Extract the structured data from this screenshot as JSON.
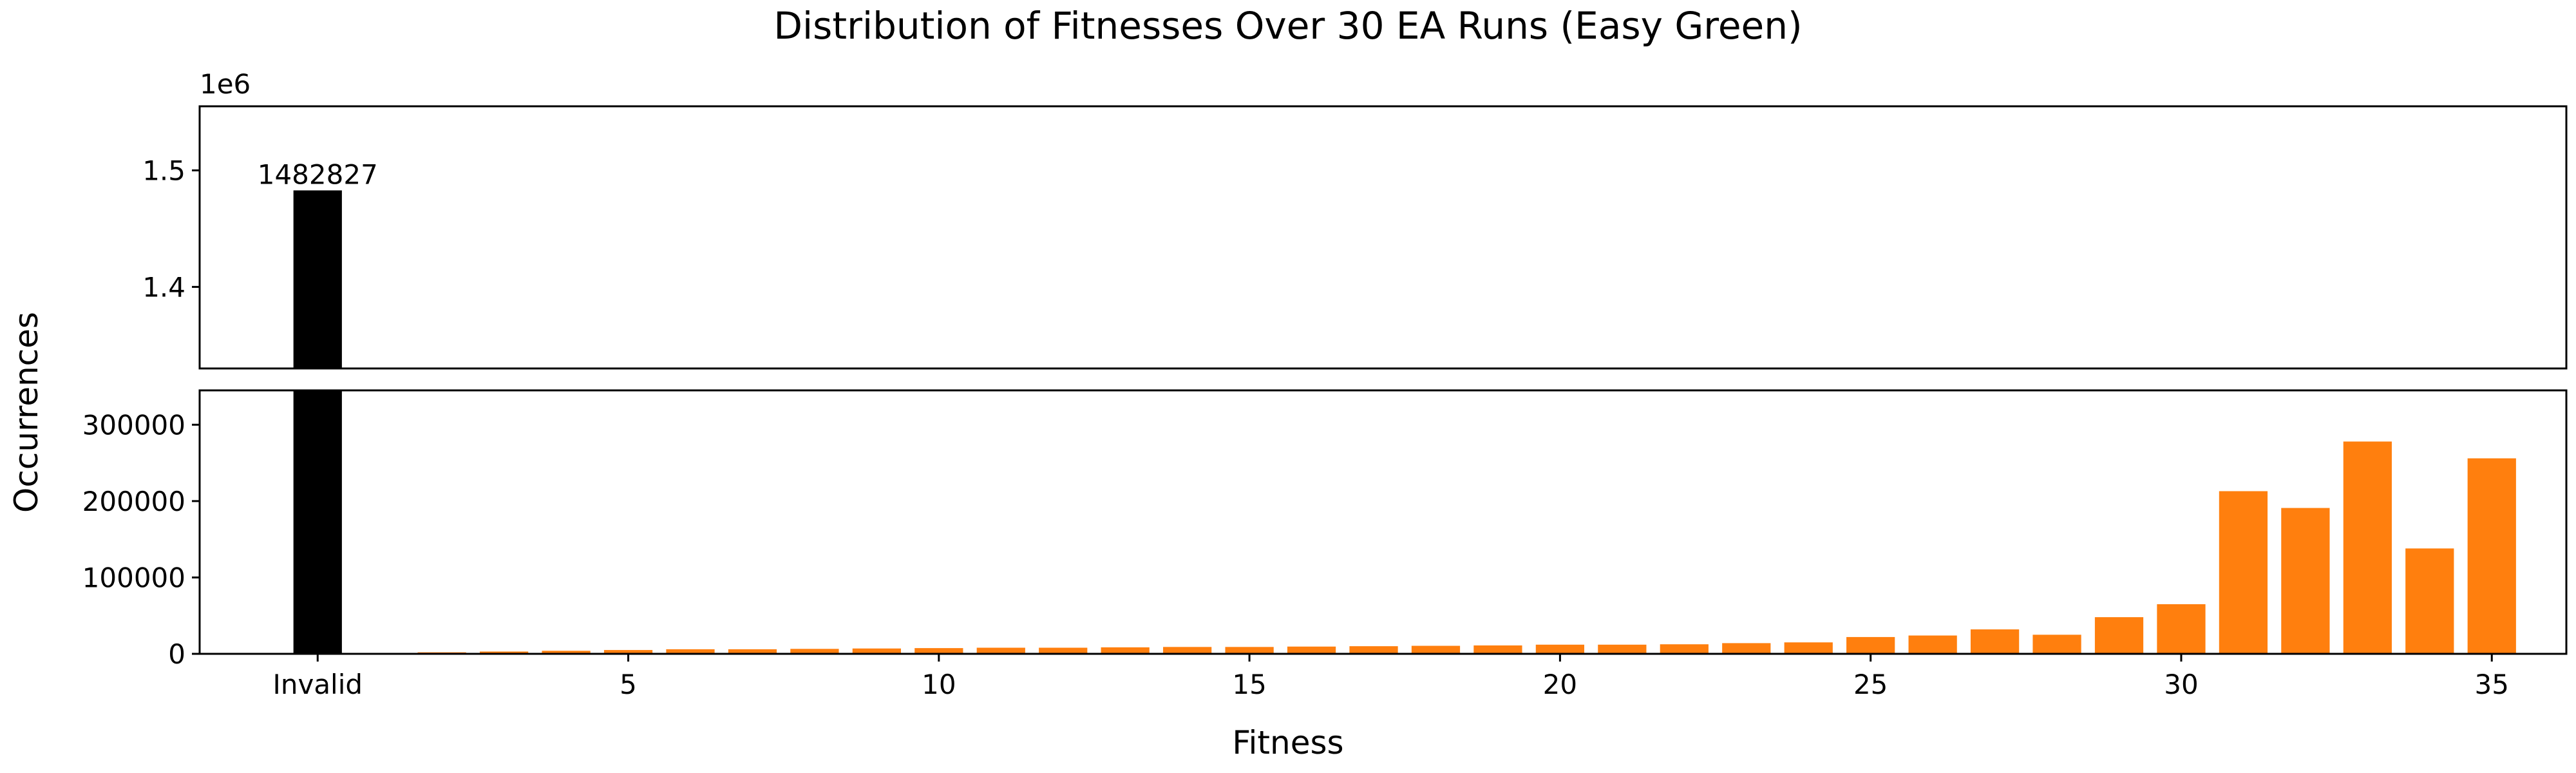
{
  "chart_data": {
    "type": "bar",
    "title": "Distribution of Fitnesses Over 30 EA Runs (Easy Green)",
    "xlabel": "Fitness",
    "ylabel": "Occurrences",
    "broken_axis": true,
    "top_panel": {
      "ylim": [
        1.33,
        1.555
      ],
      "yticks": [
        1.4,
        1.5
      ],
      "ytick_labels": [
        "1.4",
        "1.5"
      ],
      "offset_label": "1e6"
    },
    "bottom_panel": {
      "ylim": [
        0,
        345000
      ],
      "yticks": [
        0,
        100000,
        200000,
        300000
      ],
      "ytick_labels": [
        "0",
        "100000",
        "200000",
        "300000"
      ]
    },
    "xlim": [
      -1.9,
      36.2
    ],
    "xticks": [
      0,
      5,
      10,
      15,
      20,
      25,
      30,
      35
    ],
    "xtick_labels": [
      "Invalid",
      "5",
      "10",
      "15",
      "20",
      "25",
      "30",
      "35"
    ],
    "invalid_bar": {
      "category": "Invalid",
      "value": 1482827,
      "label": "1482827",
      "color": "#000000"
    },
    "series_color": "#ff7f0e",
    "categories": [
      1,
      2,
      3,
      4,
      5,
      6,
      7,
      8,
      9,
      10,
      11,
      12,
      13,
      14,
      15,
      16,
      17,
      18,
      19,
      20,
      21,
      22,
      23,
      24,
      25,
      26,
      27,
      28,
      29,
      30,
      31,
      32,
      33,
      34,
      35
    ],
    "values": [
      500,
      2000,
      3000,
      4000,
      5000,
      6000,
      6000,
      6500,
      7000,
      7500,
      8000,
      8000,
      8500,
      9000,
      9000,
      9500,
      10000,
      10500,
      11000,
      12000,
      12000,
      12500,
      14000,
      15000,
      22000,
      24000,
      32000,
      25000,
      48000,
      65000,
      213000,
      191000,
      278000,
      138000,
      256000
    ]
  }
}
